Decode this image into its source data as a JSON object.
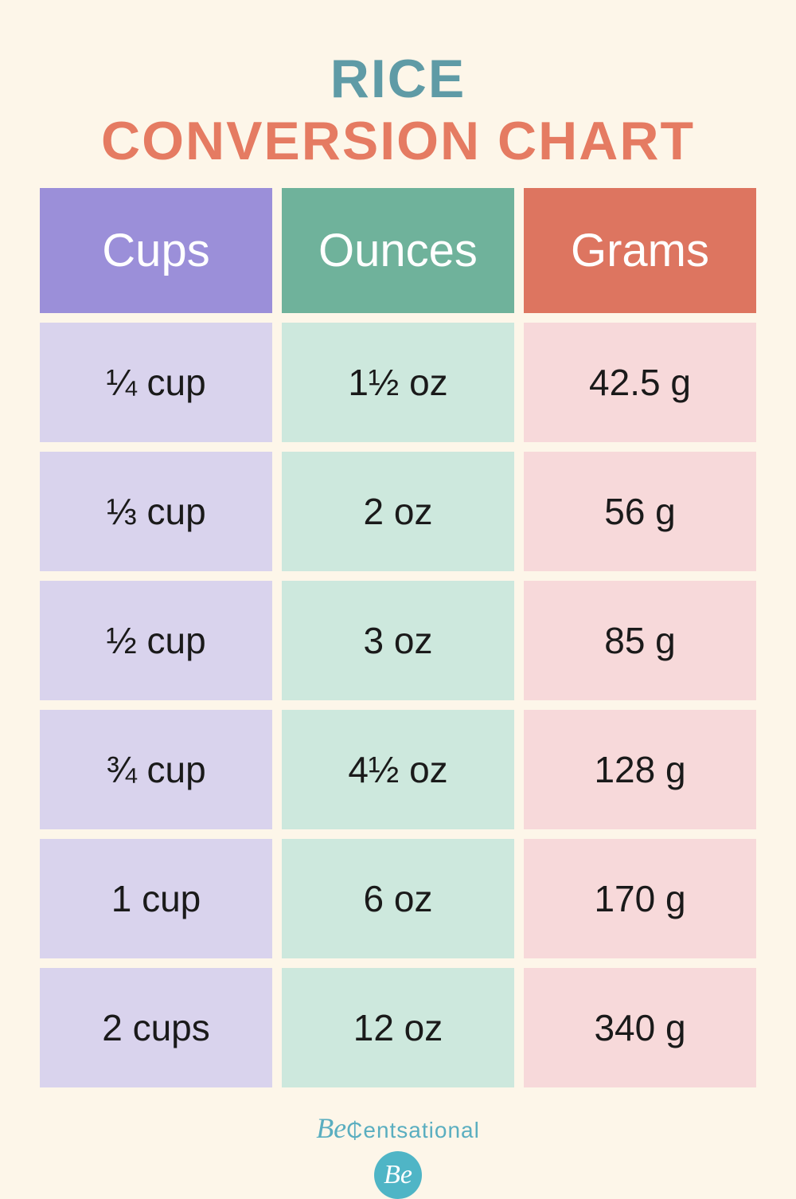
{
  "page": {
    "background_color": "#fdf6e9"
  },
  "title": {
    "line1": "RICE",
    "line2": "CONVERSION CHART",
    "line1_color": "#5f9ba6",
    "line2_color": "#e57b62",
    "fontsize": 68
  },
  "table": {
    "type": "table",
    "columns": [
      {
        "label": "Cups",
        "header_bg": "#9b8fd9",
        "cell_bg": "#d9d3ed"
      },
      {
        "label": "Ounces",
        "header_bg": "#6fb29b",
        "cell_bg": "#cde8dd"
      },
      {
        "label": "Grams",
        "header_bg": "#dd7560",
        "cell_bg": "#f7d9da"
      }
    ],
    "header_fontsize": 58,
    "header_text_color": "#ffffff",
    "cell_fontsize": 46,
    "cell_text_color": "#1a1a1a",
    "gap": 12,
    "rows": [
      [
        "¼ cup",
        "1½ oz",
        "42.5 g"
      ],
      [
        "⅓ cup",
        "2 oz",
        "56 g"
      ],
      [
        "½ cup",
        "3 oz",
        "85 g"
      ],
      [
        "¾ cup",
        "4½ oz",
        "128 g"
      ],
      [
        "1 cup",
        "6 oz",
        "170 g"
      ],
      [
        "2 cups",
        "12 oz",
        "340 g"
      ]
    ]
  },
  "footer": {
    "brand_be": "Be",
    "brand_rest": "₵entsational",
    "brand_color": "#5aaec0",
    "badge_text": "Be",
    "badge_bg": "#4fb5c6"
  }
}
